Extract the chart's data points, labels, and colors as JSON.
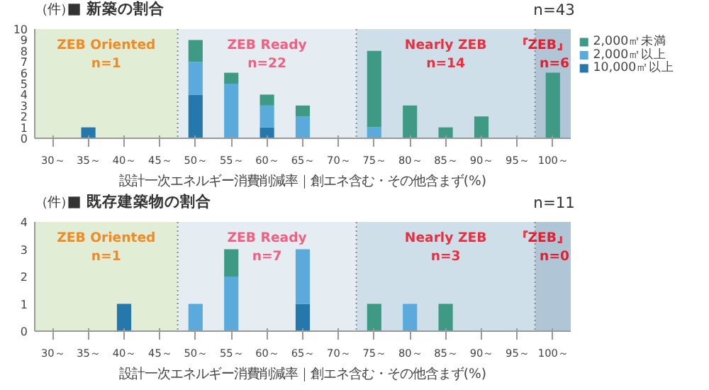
{
  "chart_data": [
    {
      "type": "bar",
      "stacked": true,
      "title": "■ 新築の割合",
      "ylabel": "（件）",
      "xlabel": "設計一次エネルギー消費削減率｜創エネ含む・その他含まず(%)",
      "categories": [
        "30～",
        "35～",
        "40～",
        "45～",
        "50～",
        "55～",
        "60～",
        "65～",
        "70～",
        "75～",
        "80～",
        "85～",
        "90～",
        "95～",
        "100～"
      ],
      "series": [
        {
          "name": "10,000㎡以上",
          "color": "#2478ab",
          "values": [
            0,
            1,
            0,
            0,
            4,
            0,
            1,
            0,
            0,
            0,
            0,
            0,
            0,
            0,
            0
          ]
        },
        {
          "name": "2,000㎡以上",
          "color": "#5aaadc",
          "values": [
            0,
            0,
            0,
            0,
            3,
            5,
            2,
            2,
            0,
            1,
            0,
            0,
            0,
            0,
            0
          ]
        },
        {
          "name": "2,000㎡未満",
          "color": "#3e9a85",
          "values": [
            0,
            0,
            0,
            0,
            2,
            1,
            1,
            1,
            0,
            7,
            3,
            1,
            2,
            0,
            6
          ]
        }
      ],
      "ylim": [
        0,
        10
      ],
      "yticks": [
        0,
        1,
        2,
        3,
        4,
        5,
        6,
        7,
        8,
        9,
        10
      ],
      "grid": "y",
      "legend": "right",
      "bands": [
        {
          "axis": "x",
          "from": "30～",
          "to": "45～",
          "label": "ZEB Oriented\nn=1",
          "color": "#e2edd6"
        },
        {
          "axis": "x",
          "from": "50～",
          "to": "70～",
          "label": "ZEB Ready\nn=22",
          "color": "#e5edf3"
        },
        {
          "axis": "x",
          "from": "75～",
          "to": "95～",
          "label": "Nearly ZEB\nn=14",
          "color": "#cfdfea"
        },
        {
          "axis": "x",
          "from": "100～",
          "to": "100～",
          "label": "『ZEB』\nn=6",
          "color": "#b0c6d6"
        }
      ],
      "annotations": [
        "n=43"
      ]
    },
    {
      "type": "bar",
      "stacked": true,
      "title": "■ 既存建築物の割合",
      "ylabel": "（件）",
      "xlabel": "設計一次エネルギー消費削減率｜創エネ含む・その他含まず(%)",
      "categories": [
        "30～",
        "35～",
        "40～",
        "45～",
        "50～",
        "55～",
        "60～",
        "65～",
        "70～",
        "75～",
        "80～",
        "85～",
        "90～",
        "95～",
        "100～"
      ],
      "series": [
        {
          "color": "#2478ab",
          "values": [
            0,
            0,
            1,
            0,
            0,
            0,
            0,
            1,
            0,
            0,
            0,
            0,
            0,
            0,
            0
          ]
        },
        {
          "color": "#5aaadc",
          "values": [
            0,
            0,
            0,
            0,
            1,
            2,
            0,
            2,
            0,
            0,
            1,
            0,
            0,
            0,
            0
          ]
        },
        {
          "color": "#3e9a85",
          "values": [
            0,
            0,
            0,
            0,
            0,
            1,
            0,
            0,
            0,
            1,
            0,
            1,
            0,
            0,
            0
          ]
        }
      ],
      "ylim": [
        0,
        4
      ],
      "yticks": [
        0,
        1,
        2,
        3,
        4
      ],
      "grid": "y",
      "bands": [
        {
          "axis": "x",
          "from": "30～",
          "to": "45～",
          "label": "ZEB Oriented\nn=1",
          "color": "#e2edd6"
        },
        {
          "axis": "x",
          "from": "50～",
          "to": "70～",
          "label": "ZEB Ready\nn=7",
          "color": "#e5edf3"
        },
        {
          "axis": "x",
          "from": "75～",
          "to": "95～",
          "label": "Nearly ZEB\nn=3",
          "color": "#cfdfea"
        },
        {
          "axis": "x",
          "from": "100～",
          "to": "100～",
          "label": "『ZEB』\nn=0",
          "color": "#b0c6d6"
        }
      ],
      "annotations": [
        "n=11"
      ]
    }
  ]
}
